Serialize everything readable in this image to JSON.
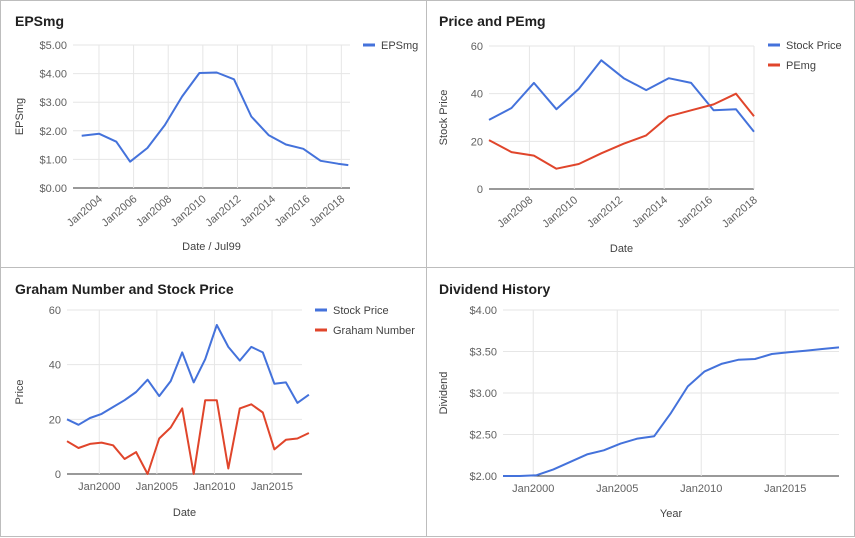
{
  "chart_data": [
    {
      "type": "line",
      "title": "EPSmg",
      "xlabel": "Date / Jul99",
      "ylabel": "EPSmg",
      "x": [
        2003,
        2004,
        2005,
        2005.8,
        2006.8,
        2007.8,
        2008.8,
        2009.8,
        2010.8,
        2011.8,
        2012.8,
        2013.8,
        2014.8,
        2015.8,
        2016.8,
        2017.8,
        2018.4
      ],
      "series": [
        {
          "name": "EPSmg",
          "color": "#4472db",
          "values": [
            1.83,
            1.9,
            1.62,
            0.92,
            1.4,
            2.2,
            3.2,
            4.02,
            4.04,
            3.8,
            2.5,
            1.85,
            1.52,
            1.37,
            0.95,
            0.85,
            0.8
          ]
        }
      ],
      "xlim": [
        2002.5,
        2018.5
      ],
      "ylim": [
        0,
        5
      ],
      "yticks": [
        "$0.00",
        "$1.00",
        "$2.00",
        "$3.00",
        "$4.00",
        "$5.00"
      ],
      "ytick_values": [
        0,
        1,
        2,
        3,
        4,
        5
      ],
      "xticks": [
        "Jan2004",
        "Jan2006",
        "Jan2008",
        "Jan2010",
        "Jan2012",
        "Jan2014",
        "Jan2016",
        "Jan2018"
      ],
      "xtick_values": [
        2004,
        2006,
        2008,
        2010,
        2012,
        2014,
        2016,
        2018
      ],
      "xtick_rotate": true,
      "grid": true,
      "legend": "top-right"
    },
    {
      "type": "line",
      "title": "Price and PEmg",
      "xlabel": "Date",
      "ylabel": "Stock Price",
      "x": [
        2006.2,
        2007.2,
        2008.2,
        2009.2,
        2010.2,
        2011.2,
        2012.2,
        2013.2,
        2014.2,
        2015.2,
        2016.2,
        2017.2,
        2018.0
      ],
      "series": [
        {
          "name": "Stock Price",
          "color": "#4472db",
          "values": [
            29,
            34,
            44.5,
            33.5,
            42,
            54,
            46.5,
            41.5,
            46.5,
            44.5,
            33,
            33.5,
            24
          ]
        },
        {
          "name": "PEmg",
          "color": "#e0452b",
          "values": [
            20.5,
            15.5,
            14,
            8.5,
            10.5,
            15,
            19,
            22.5,
            30.5,
            33,
            35.5,
            40,
            30.5
          ]
        }
      ],
      "xlim": [
        2006.2,
        2018.0
      ],
      "ylim": [
        0,
        60
      ],
      "yticks": [
        "0",
        "20",
        "40",
        "60"
      ],
      "ytick_values": [
        0,
        20,
        40,
        60
      ],
      "xticks": [
        "Jan2008",
        "Jan2010",
        "Jan2012",
        "Jan2014",
        "Jan2016",
        "Jan2018"
      ],
      "xtick_values": [
        2008,
        2010,
        2012,
        2014,
        2016,
        2018
      ],
      "xtick_rotate": true,
      "grid": true,
      "legend": "top-right"
    },
    {
      "type": "line",
      "title": "Graham Number and Stock Price",
      "xlabel": "Date",
      "ylabel": "Price",
      "x": [
        1997.2,
        1998.2,
        1999.2,
        2000.2,
        2001.2,
        2002.2,
        2003.2,
        2004.2,
        2005.2,
        2006.2,
        2007.2,
        2008.2,
        2009.2,
        2010.2,
        2011.2,
        2012.2,
        2013.2,
        2014.2,
        2015.2,
        2016.2,
        2017.2,
        2018.2
      ],
      "series": [
        {
          "name": "Stock Price",
          "color": "#4472db",
          "values": [
            20,
            18,
            20.5,
            22,
            24.5,
            27,
            30,
            34.5,
            28.5,
            34,
            44.5,
            33.5,
            42,
            54.5,
            46.5,
            41.5,
            46.5,
            44.5,
            33,
            33.5,
            26,
            29
          ]
        },
        {
          "name": "Graham Number",
          "color": "#e0452b",
          "values": [
            12,
            9.5,
            11,
            11.5,
            10.5,
            5.5,
            8,
            0,
            13,
            17,
            24,
            0,
            27,
            27,
            2,
            24,
            25.5,
            22.5,
            9,
            12.5,
            13,
            15
          ]
        }
      ],
      "xlim": [
        1997.2,
        2017.6
      ],
      "ylim": [
        0,
        60
      ],
      "yticks": [
        "0",
        "20",
        "40",
        "60"
      ],
      "ytick_values": [
        0,
        20,
        40,
        60
      ],
      "xticks": [
        "Jan2000",
        "Jan2005",
        "Jan2010",
        "Jan2015"
      ],
      "xtick_values": [
        2000,
        2005,
        2010,
        2015
      ],
      "xtick_rotate": false,
      "grid": true,
      "legend": "top-right"
    },
    {
      "type": "line",
      "title": "Dividend History",
      "xlabel": "Year",
      "ylabel": "Dividend",
      "x": [
        1998.2,
        1999.2,
        2000.2,
        2001.2,
        2002.2,
        2003.2,
        2004.2,
        2005.2,
        2006.2,
        2007.2,
        2008.2,
        2009.2,
        2010.2,
        2011.2,
        2012.2,
        2013.2,
        2014.2,
        2015.2,
        2016.2,
        2017.2,
        2018.2
      ],
      "series": [
        {
          "name": "Dividend",
          "color": "#4472db",
          "values": [
            2.0,
            2.0,
            2.01,
            2.08,
            2.17,
            2.26,
            2.31,
            2.39,
            2.45,
            2.48,
            2.76,
            3.08,
            3.26,
            3.35,
            3.4,
            3.41,
            3.47,
            3.49,
            3.51,
            3.53,
            3.55
          ]
        }
      ],
      "xlim": [
        1998.2,
        2018.2
      ],
      "ylim": [
        2.0,
        4.0
      ],
      "yticks": [
        "$2.00",
        "$2.50",
        "$3.00",
        "$3.50",
        "$4.00"
      ],
      "ytick_values": [
        2.0,
        2.5,
        3.0,
        3.5,
        4.0
      ],
      "xticks": [
        "Jan2000",
        "Jan2005",
        "Jan2010",
        "Jan2015"
      ],
      "xtick_values": [
        2000,
        2005,
        2010,
        2015
      ],
      "xtick_rotate": false,
      "grid": true,
      "legend": "none"
    }
  ]
}
